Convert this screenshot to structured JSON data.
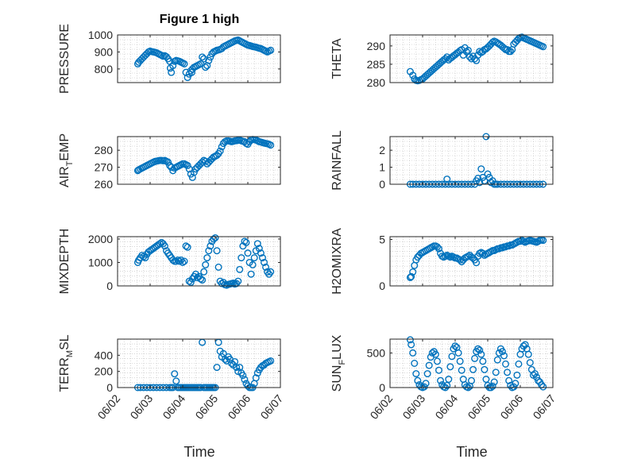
{
  "figure_title": "Figure 1 high",
  "x_axis_title": "Time",
  "x_tick_labels": [
    "06/02",
    "06/03",
    "06/04",
    "06/05",
    "06/06",
    "06/07"
  ],
  "marker_color": "#0072BD",
  "chart_data": [
    {
      "type": "scatter",
      "ylabel": "PRESSURE",
      "ylabel_sub": "",
      "ylabel_post": "",
      "ylim": [
        720,
        1000
      ],
      "yticks": [
        800,
        900,
        1000
      ],
      "xlim": [
        0,
        5
      ],
      "x": [
        0.62,
        0.65,
        0.7,
        0.75,
        0.8,
        0.85,
        0.9,
        0.95,
        1.0,
        1.05,
        1.1,
        1.15,
        1.2,
        1.25,
        1.3,
        1.35,
        1.4,
        1.45,
        1.5,
        1.55,
        1.6,
        1.62,
        1.65,
        1.7,
        1.75,
        1.8,
        1.85,
        1.9,
        1.95,
        2.0,
        2.05,
        2.1,
        2.15,
        2.2,
        2.25,
        2.28,
        2.3,
        2.35,
        2.4,
        2.45,
        2.5,
        2.55,
        2.6,
        2.65,
        2.7,
        2.75,
        2.8,
        2.85,
        2.9,
        2.95,
        3.0,
        3.05,
        3.1,
        3.15,
        3.2,
        3.25,
        3.3,
        3.35,
        3.4,
        3.45,
        3.5,
        3.55,
        3.6,
        3.65,
        3.7,
        3.75,
        3.8,
        3.85,
        3.9,
        3.95,
        4.0,
        4.05,
        4.1,
        4.15,
        4.2,
        4.25,
        4.3,
        4.35,
        4.4,
        4.45,
        4.5,
        4.55,
        4.6,
        4.65,
        4.7
      ],
      "y": [
        830,
        840,
        850,
        860,
        870,
        880,
        890,
        900,
        905,
        902,
        900,
        898,
        895,
        890,
        885,
        880,
        875,
        878,
        872,
        860,
        845,
        805,
        780,
        820,
        845,
        850,
        848,
        845,
        840,
        835,
        830,
        780,
        750,
        770,
        790,
        780,
        800,
        810,
        815,
        820,
        825,
        830,
        870,
        860,
        810,
        820,
        850,
        870,
        890,
        900,
        905,
        910,
        912,
        915,
        920,
        930,
        935,
        940,
        945,
        950,
        955,
        960,
        965,
        968,
        970,
        965,
        960,
        955,
        950,
        945,
        940,
        938,
        935,
        932,
        930,
        928,
        925,
        922,
        920,
        915,
        910,
        905,
        900,
        905,
        910
      ]
    },
    {
      "type": "scatter",
      "ylabel": "THETA",
      "ylabel_sub": "",
      "ylabel_post": "",
      "ylim": [
        280,
        293
      ],
      "yticks": [
        280,
        285,
        290
      ],
      "xlim": [
        0,
        5
      ],
      "x": [
        0.62,
        0.7,
        0.75,
        0.8,
        0.85,
        0.9,
        0.95,
        1.0,
        1.05,
        1.1,
        1.15,
        1.2,
        1.25,
        1.3,
        1.35,
        1.4,
        1.45,
        1.5,
        1.55,
        1.6,
        1.65,
        1.7,
        1.75,
        1.8,
        1.85,
        1.9,
        1.95,
        2.0,
        2.05,
        2.1,
        2.15,
        2.2,
        2.25,
        2.3,
        2.35,
        2.4,
        2.45,
        2.5,
        2.55,
        2.6,
        2.65,
        2.7,
        2.75,
        2.8,
        2.85,
        2.9,
        2.95,
        3.0,
        3.05,
        3.1,
        3.15,
        3.2,
        3.25,
        3.3,
        3.35,
        3.4,
        3.45,
        3.5,
        3.55,
        3.6,
        3.65,
        3.7,
        3.75,
        3.8,
        3.85,
        3.9,
        3.95,
        4.0,
        4.05,
        4.1,
        4.15,
        4.2,
        4.25,
        4.3,
        4.35,
        4.4,
        4.45,
        4.5,
        4.55,
        4.6,
        4.65,
        4.7
      ],
      "y": [
        283,
        282,
        281,
        280.6,
        280.5,
        280.6,
        280.8,
        281,
        281.4,
        281.8,
        282.2,
        282.6,
        283,
        283.4,
        283.8,
        284.2,
        284.6,
        285,
        285.4,
        285.8,
        286.2,
        286.5,
        287,
        286.2,
        286.6,
        286.9,
        287.3,
        287.6,
        288,
        288.3,
        288.7,
        289,
        287.5,
        289.5,
        288.4,
        288.8,
        287,
        286.5,
        287.2,
        286.5,
        286,
        287.5,
        288.5,
        288.2,
        288.5,
        289,
        289.2,
        289.6,
        290,
        290.5,
        291,
        291.3,
        291.1,
        290.8,
        290.5,
        290.2,
        289.8,
        289.4,
        289,
        289,
        288.5,
        288.5,
        289,
        290.5,
        291,
        291.5,
        292,
        292.3,
        292.4,
        292.2,
        292,
        291.8,
        291.6,
        291.4,
        291.2,
        291,
        290.8,
        290.6,
        290.4,
        290.2,
        290,
        289.8
      ]
    },
    {
      "type": "scatter",
      "ylabel": "AIR",
      "ylabel_sub": "T",
      "ylabel_post": "EMP",
      "ylim": [
        260,
        288
      ],
      "yticks": [
        260,
        270,
        280
      ],
      "xlim": [
        0,
        5
      ],
      "x": [
        0.62,
        0.65,
        0.7,
        0.75,
        0.8,
        0.85,
        0.9,
        0.95,
        1.0,
        1.05,
        1.1,
        1.15,
        1.2,
        1.25,
        1.3,
        1.35,
        1.4,
        1.45,
        1.5,
        1.55,
        1.6,
        1.65,
        1.7,
        1.75,
        1.8,
        1.85,
        1.9,
        1.95,
        2.0,
        2.05,
        2.1,
        2.15,
        2.2,
        2.25,
        2.3,
        2.35,
        2.4,
        2.45,
        2.5,
        2.55,
        2.6,
        2.65,
        2.7,
        2.75,
        2.8,
        2.85,
        2.9,
        2.95,
        3.0,
        3.05,
        3.1,
        3.15,
        3.2,
        3.25,
        3.3,
        3.35,
        3.4,
        3.45,
        3.5,
        3.55,
        3.6,
        3.65,
        3.7,
        3.75,
        3.8,
        3.85,
        3.9,
        3.95,
        4.0,
        4.05,
        4.1,
        4.15,
        4.2,
        4.25,
        4.3,
        4.35,
        4.4,
        4.45,
        4.5,
        4.55,
        4.6,
        4.65,
        4.7
      ],
      "y": [
        268,
        268.5,
        269,
        269.5,
        270,
        270.5,
        271,
        271.5,
        272,
        272.5,
        273,
        273.4,
        273.6,
        273.8,
        274,
        274,
        273.8,
        274,
        273.5,
        273,
        271,
        270,
        268,
        269.5,
        270,
        270.5,
        271,
        271.5,
        272,
        272,
        271.5,
        271,
        269,
        266,
        264,
        267,
        269,
        270,
        271,
        272,
        273,
        274,
        273.5,
        272,
        273,
        274,
        275,
        276,
        276.5,
        277,
        278,
        279.5,
        282,
        284,
        285,
        285.5,
        285.5,
        285.3,
        285,
        285.2,
        285.5,
        285.6,
        285.8,
        286,
        285.5,
        285.2,
        285,
        284,
        283.5,
        285,
        286,
        286.3,
        286.2,
        286,
        285.5,
        285,
        284.8,
        284.5,
        284.2,
        284,
        283.8,
        283.5,
        283
      ]
    },
    {
      "type": "scatter",
      "ylabel": "RAINFALL",
      "ylabel_sub": "",
      "ylabel_post": "",
      "ylim": [
        0,
        2.8
      ],
      "yticks": [
        0,
        1,
        2
      ],
      "xlim": [
        0,
        5
      ],
      "x": [
        0.62,
        0.7,
        0.8,
        0.9,
        1.0,
        1.1,
        1.2,
        1.3,
        1.4,
        1.5,
        1.6,
        1.7,
        1.75,
        1.8,
        1.9,
        2.0,
        2.1,
        2.2,
        2.3,
        2.4,
        2.5,
        2.6,
        2.65,
        2.7,
        2.75,
        2.8,
        2.85,
        2.9,
        2.95,
        3.0,
        3.05,
        3.1,
        3.15,
        3.2,
        3.25,
        3.3,
        3.4,
        3.5,
        3.6,
        3.7,
        3.8,
        3.9,
        4.0,
        4.1,
        4.2,
        4.3,
        4.4,
        4.5,
        4.6,
        4.7
      ],
      "y": [
        0,
        0,
        0,
        0,
        0,
        0,
        0,
        0,
        0,
        0,
        0,
        0,
        0.3,
        0,
        0,
        0,
        0,
        0,
        0,
        0,
        0,
        0,
        0.2,
        0.35,
        0.1,
        0.9,
        0.4,
        0.2,
        2.8,
        0.6,
        0.4,
        0.1,
        0.2,
        0,
        0,
        0,
        0,
        0,
        0,
        0,
        0,
        0,
        0,
        0,
        0,
        0,
        0,
        0,
        0,
        0
      ]
    },
    {
      "type": "scatter",
      "ylabel": "MIXDEPTH",
      "ylabel_sub": "",
      "ylabel_post": "",
      "ylim": [
        0,
        2100
      ],
      "yticks": [
        0,
        1000,
        2000
      ],
      "xlim": [
        0,
        5
      ],
      "x": [
        0.62,
        0.65,
        0.7,
        0.75,
        0.8,
        0.85,
        0.9,
        0.95,
        1.0,
        1.05,
        1.1,
        1.15,
        1.2,
        1.25,
        1.3,
        1.35,
        1.4,
        1.45,
        1.5,
        1.55,
        1.6,
        1.65,
        1.7,
        1.75,
        1.8,
        1.85,
        1.9,
        1.95,
        2.0,
        2.05,
        2.1,
        2.15,
        2.2,
        2.25,
        2.3,
        2.35,
        2.4,
        2.45,
        2.5,
        2.55,
        2.6,
        2.65,
        2.7,
        2.75,
        2.8,
        2.85,
        2.9,
        2.95,
        3.0,
        3.05,
        3.1,
        3.15,
        3.2,
        3.25,
        3.3,
        3.35,
        3.4,
        3.45,
        3.5,
        3.55,
        3.6,
        3.65,
        3.7,
        3.75,
        3.8,
        3.85,
        3.9,
        3.95,
        4.0,
        4.05,
        4.1,
        4.15,
        4.2,
        4.25,
        4.3,
        4.35,
        4.4,
        4.45,
        4.5,
        4.55,
        4.6,
        4.65,
        4.7
      ],
      "y": [
        1000,
        1100,
        1200,
        1300,
        1250,
        1200,
        1350,
        1450,
        1500,
        1550,
        1600,
        1650,
        1700,
        1750,
        1800,
        1850,
        1800,
        1700,
        1500,
        1400,
        1300,
        1200,
        1100,
        1050,
        1050,
        1100,
        1050,
        1100,
        1000,
        1050,
        1700,
        1650,
        200,
        150,
        300,
        400,
        500,
        350,
        400,
        300,
        250,
        600,
        900,
        1200,
        1500,
        1700,
        1900,
        2000,
        2050,
        1500,
        800,
        200,
        100,
        150,
        50,
        30,
        60,
        80,
        100,
        120,
        80,
        100,
        200,
        700,
        1200,
        1700,
        1900,
        1850,
        1400,
        1000,
        500,
        900,
        1200,
        1500,
        1800,
        1600,
        1400,
        1200,
        1000,
        800,
        600,
        500,
        600
      ]
    },
    {
      "type": "scatter",
      "ylabel": "H2OMIXRA",
      "ylabel_sub": "",
      "ylabel_post": "",
      "ylim": [
        0,
        5.3
      ],
      "yticks": [
        0,
        5
      ],
      "xlim": [
        0,
        5
      ],
      "x": [
        0.62,
        0.65,
        0.7,
        0.75,
        0.8,
        0.85,
        0.9,
        0.95,
        1.0,
        1.05,
        1.1,
        1.15,
        1.2,
        1.25,
        1.3,
        1.35,
        1.4,
        1.45,
        1.5,
        1.55,
        1.6,
        1.65,
        1.7,
        1.75,
        1.8,
        1.85,
        1.9,
        1.95,
        2.0,
        2.05,
        2.1,
        2.15,
        2.2,
        2.25,
        2.3,
        2.35,
        2.4,
        2.45,
        2.5,
        2.55,
        2.6,
        2.65,
        2.7,
        2.75,
        2.8,
        2.85,
        2.9,
        2.95,
        3.0,
        3.05,
        3.1,
        3.15,
        3.2,
        3.25,
        3.3,
        3.35,
        3.4,
        3.45,
        3.5,
        3.55,
        3.6,
        3.65,
        3.7,
        3.75,
        3.8,
        3.85,
        3.9,
        3.95,
        4.0,
        4.05,
        4.1,
        4.15,
        4.2,
        4.25,
        4.3,
        4.35,
        4.4,
        4.45,
        4.5,
        4.55,
        4.6,
        4.65,
        4.7
      ],
      "y": [
        0.9,
        1.0,
        1.5,
        2.2,
        2.8,
        3.1,
        3.3,
        3.5,
        3.6,
        3.7,
        3.8,
        3.9,
        4.0,
        4.1,
        4.2,
        4.3,
        4.3,
        4.2,
        4.0,
        3.5,
        3.2,
        3.1,
        3.2,
        3.3,
        3.2,
        3.1,
        3.2,
        3.1,
        3.0,
        3.0,
        2.9,
        2.8,
        2.6,
        2.8,
        3.0,
        3.1,
        3.2,
        3.3,
        3.1,
        3.0,
        2.8,
        2.5,
        3.2,
        3.5,
        3.6,
        3.5,
        3.3,
        3.4,
        3.5,
        3.6,
        3.7,
        3.8,
        3.8,
        3.9,
        4.0,
        4.0,
        4.1,
        4.1,
        4.2,
        4.2,
        4.3,
        4.3,
        4.4,
        4.4,
        4.5,
        4.6,
        4.7,
        4.8,
        4.8,
        4.9,
        4.8,
        4.7,
        4.8,
        4.85,
        4.9,
        4.85,
        4.8,
        4.75,
        4.7,
        4.8,
        4.9,
        4.95,
        4.9
      ]
    },
    {
      "type": "scatter",
      "ylabel": "TERR",
      "ylabel_sub": "M",
      "ylabel_post": "SL",
      "ylim": [
        0,
        600
      ],
      "yticks": [
        0,
        200,
        400
      ],
      "xlim": [
        0,
        5
      ],
      "x": [
        0.62,
        0.7,
        0.8,
        0.9,
        1.0,
        1.1,
        1.2,
        1.3,
        1.4,
        1.5,
        1.6,
        1.65,
        1.7,
        1.75,
        1.8,
        1.85,
        1.9,
        1.95,
        2.0,
        2.05,
        2.1,
        2.15,
        2.2,
        2.25,
        2.3,
        2.35,
        2.4,
        2.45,
        2.5,
        2.55,
        2.6,
        2.65,
        2.7,
        2.75,
        2.8,
        2.85,
        2.9,
        2.95,
        3.0,
        3.05,
        3.1,
        3.15,
        3.2,
        3.25,
        3.3,
        3.35,
        3.4,
        3.45,
        3.5,
        3.55,
        3.6,
        3.65,
        3.7,
        3.75,
        3.8,
        3.85,
        3.9,
        3.95,
        4.0,
        4.05,
        4.1,
        4.15,
        4.2,
        4.25,
        4.3,
        4.35,
        4.4,
        4.45,
        4.5,
        4.55,
        4.6,
        4.65,
        4.7
      ],
      "y": [
        0,
        0,
        0,
        0,
        0,
        0,
        0,
        0,
        0,
        0,
        0,
        0,
        0,
        170,
        80,
        0,
        0,
        0,
        0,
        0,
        0,
        0,
        0,
        0,
        0,
        0,
        0,
        0,
        0,
        0,
        560,
        0,
        0,
        0,
        0,
        0,
        0,
        0,
        0,
        250,
        560,
        450,
        380,
        420,
        350,
        330,
        380,
        350,
        300,
        280,
        320,
        250,
        200,
        250,
        180,
        150,
        100,
        50,
        20,
        0,
        0,
        0,
        50,
        120,
        180,
        220,
        250,
        270,
        280,
        300,
        310,
        320,
        330
      ]
    },
    {
      "type": "scatter",
      "ylabel": "SUN",
      "ylabel_sub": "F",
      "ylabel_post": "LUX",
      "ylim": [
        0,
        700
      ],
      "yticks": [
        0,
        500
      ],
      "xlim": [
        0,
        5
      ],
      "x": [
        0.62,
        0.65,
        0.7,
        0.75,
        0.8,
        0.85,
        0.9,
        0.95,
        1.0,
        1.05,
        1.1,
        1.15,
        1.2,
        1.25,
        1.3,
        1.35,
        1.4,
        1.45,
        1.5,
        1.55,
        1.6,
        1.65,
        1.7,
        1.75,
        1.8,
        1.85,
        1.9,
        1.95,
        2.0,
        2.05,
        2.1,
        2.15,
        2.2,
        2.25,
        2.3,
        2.35,
        2.4,
        2.45,
        2.5,
        2.55,
        2.6,
        2.65,
        2.7,
        2.75,
        2.8,
        2.85,
        2.9,
        2.95,
        3.0,
        3.05,
        3.1,
        3.15,
        3.2,
        3.25,
        3.3,
        3.35,
        3.4,
        3.45,
        3.5,
        3.55,
        3.6,
        3.65,
        3.7,
        3.75,
        3.8,
        3.85,
        3.9,
        3.95,
        4.0,
        4.05,
        4.1,
        4.15,
        4.2,
        4.25,
        4.3,
        4.35,
        4.4,
        4.45,
        4.5,
        4.55,
        4.6,
        4.65,
        4.7
      ],
      "y": [
        690,
        620,
        500,
        350,
        200,
        100,
        40,
        10,
        0,
        10,
        60,
        200,
        320,
        440,
        500,
        520,
        480,
        380,
        250,
        100,
        40,
        10,
        0,
        30,
        120,
        300,
        450,
        560,
        600,
        580,
        500,
        380,
        250,
        120,
        40,
        10,
        0,
        20,
        100,
        260,
        420,
        520,
        560,
        540,
        480,
        380,
        260,
        120,
        30,
        0,
        0,
        20,
        80,
        220,
        400,
        500,
        560,
        520,
        460,
        340,
        220,
        100,
        30,
        0,
        10,
        60,
        180,
        340,
        480,
        560,
        600,
        620,
        560,
        480,
        360,
        260,
        180,
        200,
        150,
        100,
        80,
        40,
        10
      ]
    }
  ]
}
